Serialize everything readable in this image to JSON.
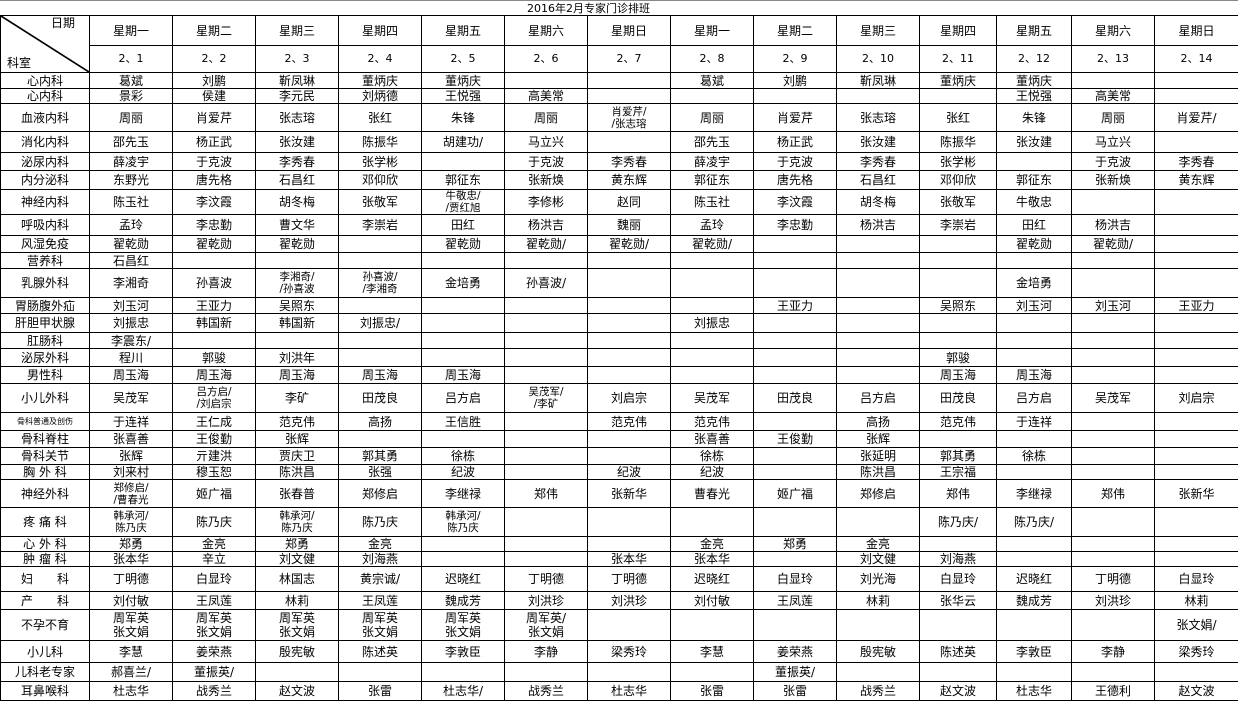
{
  "title": "2016年2月专家门诊排班",
  "header": {
    "date_label": "日期",
    "dept_label": "科室",
    "weekdays": [
      "星期一",
      "星期二",
      "星期三",
      "星期四",
      "星期五",
      "星期六",
      "星期日",
      "星期一",
      "星期二",
      "星期三",
      "星期四",
      "星期五",
      "星期六",
      "星期日"
    ],
    "dates": [
      "2、1",
      "2、2",
      "2、3",
      "2、4",
      "2、5",
      "2、6",
      "2、7",
      "2、8",
      "2、9",
      "2、10",
      "2、11",
      "2、12",
      "2、13",
      "2、14"
    ]
  },
  "rows": [
    {
      "dept": "心内科",
      "cells": [
        "葛斌",
        "刘鹏",
        "靳凤琳",
        "董炳庆",
        "董炳庆",
        "",
        "",
        "葛斌",
        "刘鹏",
        "靳凤琳",
        "董炳庆",
        "董炳庆",
        "",
        ""
      ]
    },
    {
      "dept": "心内科",
      "cells": [
        "景彩",
        "侯建",
        "李元民",
        "刘炳德",
        "王悦强",
        "高美常",
        "",
        "",
        "",
        "",
        "",
        "王悦强",
        "高美常",
        ""
      ]
    },
    {
      "dept": "血液内科",
      "cells": [
        "周丽",
        "肖爱芹",
        "张志瑢",
        "张红",
        "朱锋",
        "周丽",
        "肖爱芹/\n/张志瑢",
        "周丽",
        "肖爱芹",
        "张志瑢",
        "张红",
        "朱锋",
        "周丽",
        "肖爱芹/"
      ]
    },
    {
      "dept": "消化内科",
      "cells": [
        "邵先玉",
        "杨正武",
        "张汝建",
        "陈振华",
        "胡建功/",
        "马立兴",
        "",
        "邵先玉",
        "杨正武",
        "张汝建",
        "陈振华",
        "张汝建",
        "马立兴",
        ""
      ]
    },
    {
      "dept": "泌尿内科",
      "cells": [
        "薛凌宇",
        "于克波",
        "李秀春",
        "张学彬",
        "",
        "于克波",
        "李秀春",
        "薛凌宇",
        "于克波",
        "李秀春",
        "张学彬",
        "",
        "于克波",
        "李秀春"
      ]
    },
    {
      "dept": "内分泌科",
      "cells": [
        "东野光",
        "唐先格",
        "石昌红",
        "邓仰欣",
        "郭征东",
        "张新焕",
        "黄东辉",
        "郭征东",
        "唐先格",
        "石昌红",
        "邓仰欣",
        "郭征东",
        "张新焕",
        "黄东辉"
      ]
    },
    {
      "dept": "神经内科",
      "cells": [
        "陈玉社",
        "李汶霞",
        "胡冬梅",
        "张敬军",
        "牛敬忠/\n/贾红旭",
        "李修彬",
        "赵同",
        "陈玉社",
        "李汶霞",
        "胡冬梅",
        "张敬军",
        "牛敬忠",
        "",
        ""
      ]
    },
    {
      "dept": "呼吸内科",
      "cells": [
        "孟玲",
        "李忠勤",
        "曹文华",
        "李崇岩",
        "田红",
        "杨洪吉",
        "魏丽",
        "孟玲",
        "李忠勤",
        "杨洪吉",
        "李崇岩",
        "田红",
        "杨洪吉",
        ""
      ]
    },
    {
      "dept": "风湿免疫",
      "cells": [
        "翟乾勋",
        "翟乾勋",
        "翟乾勋",
        "",
        "翟乾勋",
        "翟乾勋/",
        "翟乾勋/",
        "翟乾勋/",
        "",
        "",
        "",
        "翟乾勋",
        "翟乾勋/",
        ""
      ]
    },
    {
      "dept": "营养科",
      "cells": [
        "石昌红",
        "",
        "",
        "",
        "",
        "",
        "",
        "",
        "",
        "",
        "",
        "",
        "",
        ""
      ]
    },
    {
      "dept": "乳腺外科",
      "cells": [
        "李湘奇",
        "孙喜波",
        "李湘奇/\n/孙喜波",
        "孙喜波/\n/李湘奇",
        "金培勇",
        "孙喜波/",
        "",
        "",
        "",
        "",
        "",
        "金培勇",
        "",
        ""
      ]
    },
    {
      "dept": "胃肠腹外疝",
      "cells": [
        "刘玉河",
        "王亚力",
        "吴照东",
        "",
        "",
        "",
        "",
        "",
        "王亚力",
        "",
        "吴照东",
        "刘玉河",
        "刘玉河",
        "王亚力"
      ]
    },
    {
      "dept": "肝胆甲状腺",
      "cells": [
        "刘振忠",
        "韩国新",
        "韩国新",
        "刘振忠/",
        "",
        "",
        "",
        "刘振忠",
        "",
        "",
        "",
        "",
        "",
        ""
      ]
    },
    {
      "dept": "肛肠科",
      "cells": [
        "李震东/",
        "",
        "",
        "",
        "",
        "",
        "",
        "",
        "",
        "",
        "",
        "",
        "",
        ""
      ]
    },
    {
      "dept": "泌尿外科",
      "cells": [
        "程川",
        "郭骏",
        "刘洪年",
        "",
        "",
        "",
        "",
        "",
        "",
        "",
        "郭骏",
        "",
        "",
        ""
      ]
    },
    {
      "dept": "男性科",
      "cells": [
        "周玉海",
        "周玉海",
        "周玉海",
        "周玉海",
        "周玉海",
        "",
        "",
        "",
        "",
        "",
        "周玉海",
        "周玉海",
        "",
        ""
      ]
    },
    {
      "dept": "小儿外科",
      "cells": [
        "吴茂军",
        "吕方启/\n/刘启宗",
        "李矿",
        "田茂良",
        "吕方启",
        "吴茂军/\n/李矿",
        "刘启宗",
        "吴茂军",
        "田茂良",
        "吕方启",
        "田茂良",
        "吕方启",
        "吴茂军",
        "刘启宗"
      ]
    },
    {
      "dept": "骨科普通及创伤",
      "cells": [
        "于连祥",
        "王仁成",
        "范克伟",
        "高扬",
        "王信胜",
        "",
        "范克伟",
        "范克伟",
        "",
        "高扬",
        "范克伟",
        "于连祥",
        "",
        ""
      ]
    },
    {
      "dept": "骨科脊柱",
      "cells": [
        "张喜善",
        "王俊勤",
        "张辉",
        "",
        "",
        "",
        "",
        "张喜善",
        "王俊勤",
        "张辉",
        "",
        "",
        "",
        ""
      ]
    },
    {
      "dept": "骨科关节",
      "cells": [
        "张辉",
        "亓建洪",
        "贾庆卫",
        "郭其勇",
        "徐栋",
        "",
        "",
        "徐栋",
        "",
        "张延明",
        "郭其勇",
        "徐栋",
        "",
        ""
      ]
    },
    {
      "dept": "胸 外 科",
      "cells": [
        "刘来村",
        "穆玉恕",
        "陈洪昌",
        "张强",
        "纪波",
        "",
        "纪波",
        "纪波",
        "",
        "陈洪昌",
        "王宗福",
        "",
        "",
        ""
      ]
    },
    {
      "dept": "神经外科",
      "cells": [
        "郑修启/\n/曹春光",
        "姬广福",
        "张春普",
        "郑修启",
        "李继禄",
        "郑伟",
        "张新华",
        "曹春光",
        "姬广福",
        "郑修启",
        "郑伟",
        "李继禄",
        "郑伟",
        "张新华"
      ]
    },
    {
      "dept": "疼 痛 科",
      "cells": [
        "韩承河/\n陈乃庆",
        "陈乃庆",
        "韩承河/\n陈乃庆",
        "陈乃庆",
        "韩承河/\n陈乃庆",
        "",
        "",
        "",
        "",
        "",
        "陈乃庆/",
        "陈乃庆/",
        "",
        ""
      ]
    },
    {
      "dept": "心 外 科",
      "cells": [
        "郑勇",
        "金亮",
        "郑勇",
        "金亮",
        "",
        "",
        "",
        "金亮",
        "郑勇",
        "金亮",
        "",
        "",
        "",
        ""
      ]
    },
    {
      "dept": "肿 瘤 科",
      "cells": [
        "张本华",
        "辛立",
        "刘文健",
        "刘海燕",
        "",
        "",
        "张本华",
        "张本华",
        "",
        "刘文健",
        "刘海燕",
        "",
        "",
        ""
      ]
    },
    {
      "dept": "妇　　科",
      "cells": [
        "丁明德",
        "白显玲",
        "林国志",
        "黄宗诚/",
        "迟晓红",
        "丁明德",
        "丁明德",
        "迟晓红",
        "白显玲",
        "刘光海",
        "白显玲",
        "迟晓红",
        "丁明德",
        "白显玲"
      ]
    },
    {
      "dept": "产　　科",
      "cells": [
        "刘付敏",
        "王凤莲",
        "林莉",
        "王凤莲",
        "魏成芳",
        "刘洪珍",
        "刘洪珍",
        "刘付敏",
        "王凤莲",
        "林莉",
        "张华云",
        "魏成芳",
        "刘洪珍",
        "林莉"
      ]
    },
    {
      "dept": "不孕不育",
      "cells": [
        "周军英\n张文娟",
        "周军英\n张文娟",
        "周军英\n张文娟",
        "周军英\n张文娟",
        "周军英\n张文娟",
        "周军英/\n张文娟",
        "",
        "",
        "",
        "",
        "",
        "",
        "",
        "张文娟/"
      ]
    },
    {
      "dept": "小儿科",
      "cells": [
        "李慧",
        "姜荣燕",
        "殷宪敏",
        "陈述英",
        "李敦臣",
        "李静",
        "梁秀玲",
        "李慧",
        "姜荣燕",
        "殷宪敏",
        "陈述英",
        "李敦臣",
        "李静",
        "梁秀玲"
      ]
    },
    {
      "dept": "儿科老专家",
      "cells": [
        "郝喜兰/",
        "董振英/",
        "",
        "",
        "",
        "",
        "",
        "",
        "董振英/",
        "",
        "",
        "",
        "",
        ""
      ]
    },
    {
      "dept": "耳鼻喉科",
      "cells": [
        "杜志华",
        "战秀兰",
        "赵文波",
        "张雷",
        "杜志华/",
        "战秀兰",
        "杜志华",
        "张雷",
        "张雷",
        "战秀兰",
        "赵文波",
        "杜志华",
        "王德利",
        "赵文波"
      ]
    }
  ]
}
